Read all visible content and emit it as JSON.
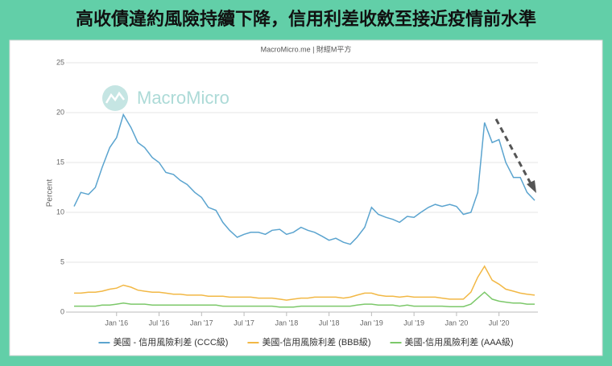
{
  "chart_data": {
    "type": "line",
    "title": "高收債違約風險持續下降，信用利差收斂至接近疫情前水準",
    "subtitle": "MacroMicro.me | 財經M平方",
    "watermark": "MacroMicro",
    "y_label": "Percent",
    "x": [
      2015.5,
      2015.58,
      2015.67,
      2015.75,
      2015.83,
      2015.92,
      2016.0,
      2016.08,
      2016.17,
      2016.25,
      2016.33,
      2016.42,
      2016.5,
      2016.58,
      2016.67,
      2016.75,
      2016.83,
      2016.92,
      2017.0,
      2017.08,
      2017.17,
      2017.25,
      2017.33,
      2017.42,
      2017.5,
      2017.58,
      2017.67,
      2017.75,
      2017.83,
      2017.92,
      2018.0,
      2018.08,
      2018.17,
      2018.25,
      2018.33,
      2018.42,
      2018.5,
      2018.58,
      2018.67,
      2018.75,
      2018.83,
      2018.92,
      2019.0,
      2019.08,
      2019.17,
      2019.25,
      2019.33,
      2019.42,
      2019.5,
      2019.58,
      2019.67,
      2019.75,
      2019.83,
      2019.92,
      2020.0,
      2020.08,
      2020.17,
      2020.25,
      2020.33,
      2020.42,
      2020.5,
      2020.58,
      2020.67,
      2020.75,
      2020.83,
      2020.92
    ],
    "series": [
      {
        "name": "美國 - 信用風險利差 (CCC級)",
        "color": "#5ba4cf",
        "values": [
          10.6,
          12.0,
          11.8,
          12.5,
          14.5,
          16.5,
          17.5,
          19.8,
          18.5,
          17.0,
          16.5,
          15.5,
          15.0,
          14.0,
          13.8,
          13.2,
          12.8,
          12.0,
          11.5,
          10.5,
          10.2,
          9.0,
          8.2,
          7.5,
          7.8,
          8.0,
          8.0,
          7.8,
          8.2,
          8.3,
          7.8,
          8.0,
          8.5,
          8.2,
          8.0,
          7.6,
          7.2,
          7.4,
          7.0,
          6.8,
          7.5,
          8.5,
          10.5,
          9.8,
          9.5,
          9.3,
          9.0,
          9.6,
          9.5,
          10.0,
          10.5,
          10.8,
          10.6,
          10.8,
          10.6,
          9.8,
          10.0,
          12.0,
          19.0,
          17.0,
          17.3,
          15.0,
          13.5,
          13.5,
          12.0,
          11.2
        ]
      },
      {
        "name": "美國-信用風險利差 (BBB級)",
        "color": "#f2b845",
        "values": [
          1.9,
          1.9,
          2.0,
          2.0,
          2.1,
          2.3,
          2.4,
          2.7,
          2.5,
          2.2,
          2.1,
          2.0,
          2.0,
          1.9,
          1.8,
          1.8,
          1.7,
          1.7,
          1.7,
          1.6,
          1.6,
          1.6,
          1.5,
          1.5,
          1.5,
          1.5,
          1.4,
          1.4,
          1.4,
          1.3,
          1.2,
          1.3,
          1.4,
          1.4,
          1.5,
          1.5,
          1.5,
          1.5,
          1.4,
          1.5,
          1.7,
          1.9,
          1.9,
          1.7,
          1.6,
          1.6,
          1.5,
          1.6,
          1.5,
          1.5,
          1.5,
          1.5,
          1.4,
          1.3,
          1.3,
          1.3,
          2.0,
          3.5,
          4.6,
          3.2,
          2.8,
          2.3,
          2.1,
          1.9,
          1.8,
          1.7
        ]
      },
      {
        "name": "美國-信用風險利差 (AAA級)",
        "color": "#7cc86a",
        "values": [
          0.6,
          0.6,
          0.6,
          0.6,
          0.7,
          0.7,
          0.8,
          0.9,
          0.8,
          0.8,
          0.8,
          0.7,
          0.7,
          0.7,
          0.7,
          0.7,
          0.7,
          0.7,
          0.7,
          0.7,
          0.7,
          0.6,
          0.6,
          0.6,
          0.6,
          0.6,
          0.6,
          0.6,
          0.6,
          0.5,
          0.5,
          0.5,
          0.6,
          0.6,
          0.6,
          0.6,
          0.6,
          0.6,
          0.6,
          0.6,
          0.7,
          0.8,
          0.8,
          0.7,
          0.7,
          0.7,
          0.6,
          0.7,
          0.6,
          0.6,
          0.6,
          0.6,
          0.6,
          0.55,
          0.55,
          0.55,
          0.8,
          1.4,
          2.0,
          1.3,
          1.1,
          1.0,
          0.9,
          0.9,
          0.8,
          0.8
        ]
      }
    ],
    "xlim": [
      2015.5,
      2020.92
    ],
    "xticks": [
      {
        "value": 2016,
        "label": "Jan '16"
      },
      {
        "value": 2016.5,
        "label": "Jul '16"
      },
      {
        "value": 2017,
        "label": "Jan '17"
      },
      {
        "value": 2017.5,
        "label": "Jul '17"
      },
      {
        "value": 2018,
        "label": "Jan '18"
      },
      {
        "value": 2018.5,
        "label": "Jul '18"
      },
      {
        "value": 2019,
        "label": "Jan '19"
      },
      {
        "value": 2019.5,
        "label": "Jul '19"
      },
      {
        "value": 2020,
        "label": "Jan '20"
      },
      {
        "value": 2020.5,
        "label": "Jul '20"
      }
    ],
    "ylim": [
      0,
      25
    ],
    "yticks": [
      0,
      5,
      10,
      15,
      20,
      25
    ],
    "grid": true
  }
}
